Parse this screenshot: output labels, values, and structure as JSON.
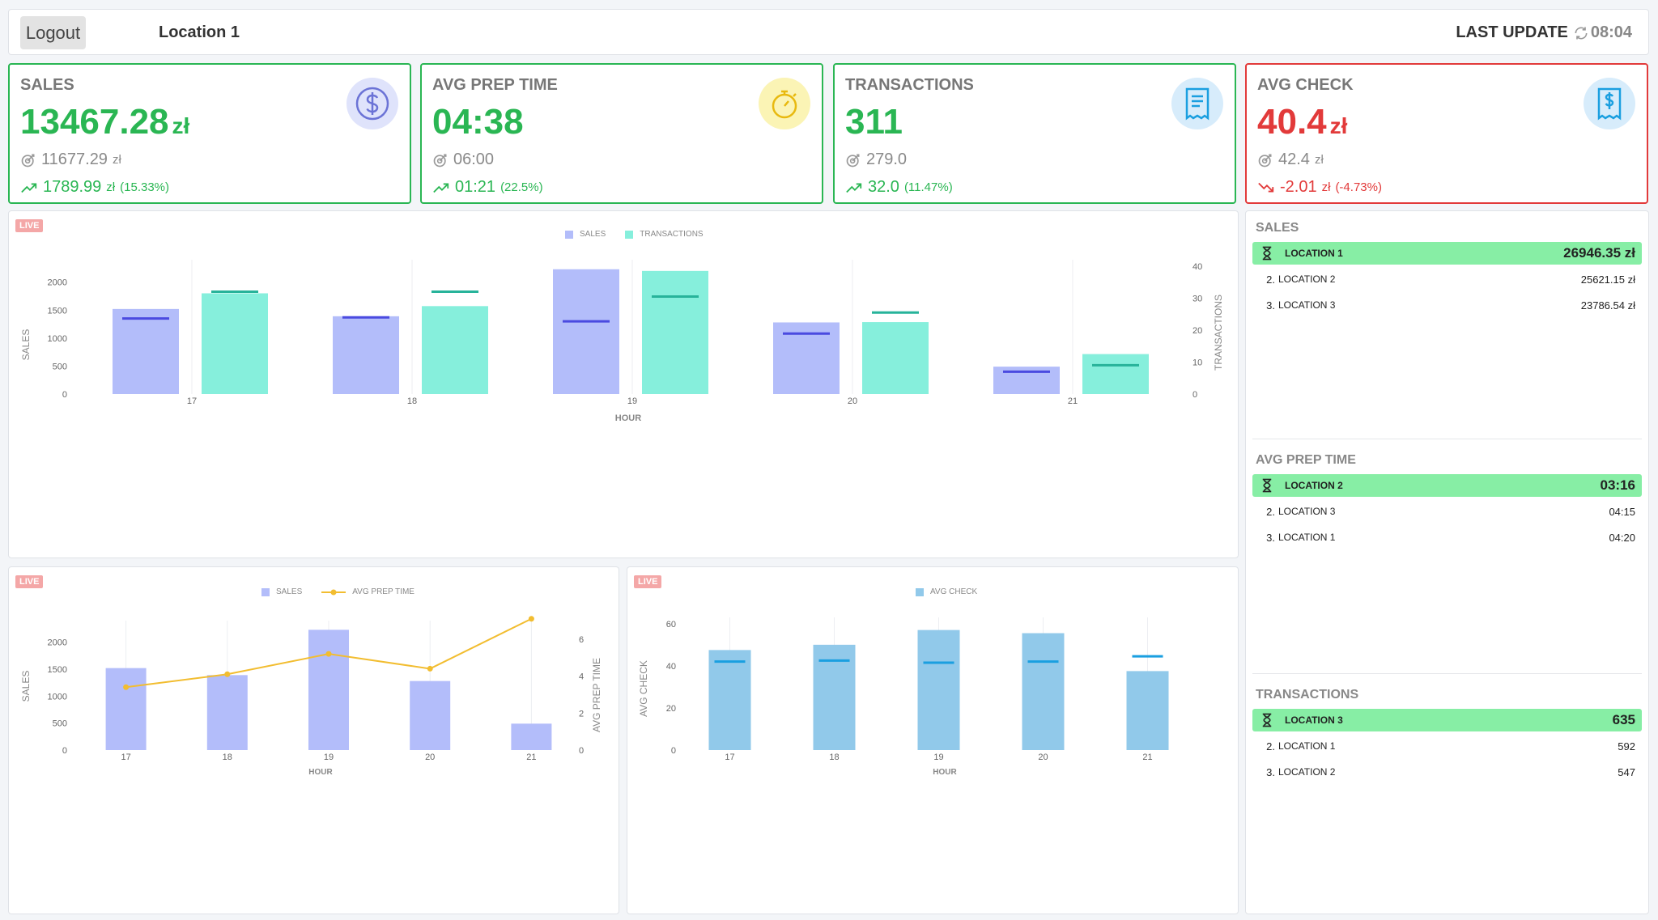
{
  "header": {
    "logout_label": "Logout",
    "location": "Location 1",
    "last_update_label": "LAST UPDATE",
    "last_update_time": "08:04"
  },
  "kpis": [
    {
      "title": "SALES",
      "value": "13467.28",
      "unit": "zł",
      "target": "11677.29",
      "target_unit": "zł",
      "delta": "1789.99",
      "delta_unit": "zł",
      "delta_pct": "(15.33%)",
      "status": "good",
      "icon": "dollar-coin-icon"
    },
    {
      "title": "AVG PREP TIME",
      "value": "04:38",
      "unit": "",
      "target": "06:00",
      "target_unit": "",
      "delta": "01:21",
      "delta_unit": "",
      "delta_pct": "(22.5%)",
      "status": "good",
      "icon": "stopwatch-icon"
    },
    {
      "title": "TRANSACTIONS",
      "value": "311",
      "unit": "",
      "target": "279.0",
      "target_unit": "",
      "delta": "32.0",
      "delta_unit": "",
      "delta_pct": "(11.47%)",
      "status": "good",
      "icon": "receipt-icon"
    },
    {
      "title": "AVG CHECK",
      "value": "40.4",
      "unit": "zł",
      "target": "42.4",
      "target_unit": "zł",
      "delta": "-2.01",
      "delta_unit": "zł",
      "delta_pct": "(-4.73%)",
      "status": "bad",
      "icon": "receipt-dollar-icon"
    }
  ],
  "colors": {
    "good": "#2ab653",
    "bad": "#e23a3a",
    "sales_bar": "#b3bdfa",
    "sales_marker": "#4a4ae0",
    "transactions_bar": "#86efdc",
    "transactions_marker": "#27b39a",
    "prep_line": "#f2bd30",
    "avg_check_bar": "#91c9ea",
    "avg_check_marker": "#1a9fe0"
  },
  "live_label": "LIVE",
  "chart_data": [
    {
      "type": "bar",
      "legend": [
        "SALES",
        "TRANSACTIONS"
      ],
      "categories": [
        "17",
        "18",
        "19",
        "20",
        "21"
      ],
      "xlabel": "HOUR",
      "ylabel": "SALES",
      "y2label": "TRANSACTIONS",
      "ylim": [
        0,
        2400
      ],
      "y2lim": [
        0,
        42
      ],
      "yticks": [
        0,
        500,
        1000,
        1500,
        2000
      ],
      "y2ticks": [
        0,
        10,
        20,
        30,
        40
      ],
      "series": [
        {
          "name": "SALES",
          "values": [
            1520,
            1390,
            2230,
            1280,
            490
          ],
          "targets": [
            1350,
            1370,
            1300,
            1080,
            400
          ]
        },
        {
          "name": "TRANSACTIONS",
          "values": [
            31.5,
            27.5,
            38.5,
            22.5,
            12.5
          ],
          "targets": [
            32.0,
            32.0,
            30.5,
            25.5,
            9.0
          ]
        }
      ]
    },
    {
      "type": "bar",
      "legend": [
        "SALES",
        "AVG PREP TIME"
      ],
      "categories": [
        "17",
        "18",
        "19",
        "20",
        "21"
      ],
      "xlabel": "HOUR",
      "ylabel": "SALES",
      "y2label": "AVG PREP TIME",
      "ylim": [
        0,
        2400
      ],
      "y2lim": [
        0,
        7
      ],
      "yticks": [
        0,
        500,
        1000,
        1500,
        2000
      ],
      "y2ticks": [
        0,
        2,
        4,
        6
      ],
      "series": [
        {
          "name": "SALES",
          "values": [
            1520,
            1390,
            2230,
            1280,
            490
          ]
        },
        {
          "name": "AVG PREP TIME",
          "values": [
            3.4,
            4.1,
            5.2,
            4.4,
            7.1
          ]
        }
      ]
    },
    {
      "type": "bar",
      "legend": [
        "AVG CHECK"
      ],
      "categories": [
        "17",
        "18",
        "19",
        "20",
        "21"
      ],
      "xlabel": "HOUR",
      "ylabel": "AVG CHECK",
      "ylim": [
        0,
        63
      ],
      "yticks": [
        0,
        20,
        40,
        60
      ],
      "series": [
        {
          "name": "AVG CHECK",
          "values": [
            47.5,
            50,
            57,
            55.5,
            37.5
          ],
          "targets": [
            42,
            42.5,
            41.5,
            42,
            44.5
          ]
        }
      ]
    }
  ],
  "rankings": [
    {
      "title": "SALES",
      "rows": [
        {
          "rank": "1.",
          "name": "LOCATION 1",
          "value": "26946.35 zł"
        },
        {
          "rank": "2.",
          "name": "LOCATION 2",
          "value": "25621.15 zł"
        },
        {
          "rank": "3.",
          "name": "LOCATION 3",
          "value": "23786.54 zł"
        }
      ]
    },
    {
      "title": "AVG PREP TIME",
      "rows": [
        {
          "rank": "1.",
          "name": "LOCATION 2",
          "value": "03:16"
        },
        {
          "rank": "2.",
          "name": "LOCATION 3",
          "value": "04:15"
        },
        {
          "rank": "3.",
          "name": "LOCATION 1",
          "value": "04:20"
        }
      ]
    },
    {
      "title": "TRANSACTIONS",
      "rows": [
        {
          "rank": "1.",
          "name": "LOCATION 3",
          "value": "635"
        },
        {
          "rank": "2.",
          "name": "LOCATION 1",
          "value": "592"
        },
        {
          "rank": "3.",
          "name": "LOCATION 2",
          "value": "547"
        }
      ]
    }
  ]
}
